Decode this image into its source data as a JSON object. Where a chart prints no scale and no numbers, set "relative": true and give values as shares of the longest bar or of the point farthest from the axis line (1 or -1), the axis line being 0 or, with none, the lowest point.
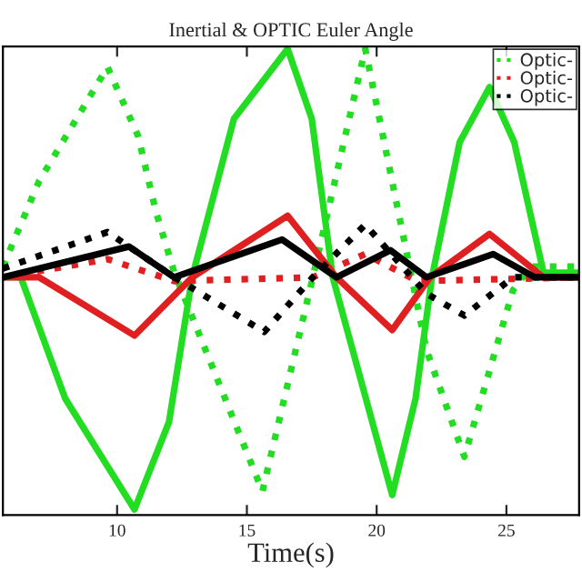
{
  "chart_data": {
    "type": "line",
    "title": "Inertial & OPTIC Euler Angle",
    "xlabel": "Time(s)",
    "relative": true,
    "xlim": [
      5.6,
      27.8
    ],
    "xticks": [
      10,
      15,
      20,
      25
    ],
    "grid": false,
    "legend": "top right",
    "series": [
      {
        "color": "#22dd22",
        "line_style": "solid",
        "x": [
          5.6,
          6.29,
          8.0,
          10.67,
          12.0,
          12.89,
          14.5,
          16.57,
          17.5,
          18.31,
          20.6,
          21.5,
          22.13,
          23.2,
          24.35,
          25.3,
          26.43,
          27.8
        ],
        "values": [
          0.51,
          0.51,
          0.25,
          0.012,
          0.2,
          0.51,
          0.85,
          1.0,
          0.85,
          0.51,
          0.043,
          0.25,
          0.51,
          0.8,
          0.918,
          0.8,
          0.52,
          0.52
        ]
      },
      {
        "name": "Optic-",
        "color": "#22dd22",
        "line_style": "dotted",
        "x": [
          5.6,
          6.99,
          9.63,
          10.81,
          11.5,
          12.2,
          15.6,
          17.54,
          19.56,
          21.92,
          23.38,
          25.25,
          25.95,
          27.8
        ],
        "values": [
          0.533,
          0.716,
          0.961,
          0.813,
          0.65,
          0.521,
          0.051,
          0.51,
          1.0,
          0.354,
          0.125,
          0.482,
          0.533,
          0.533
        ]
      },
      {
        "color": "#e02020",
        "line_style": "solid",
        "x": [
          5.6,
          6.99,
          10.67,
          12.89,
          16.57,
          18.45,
          20.6,
          22.06,
          24.35,
          26.43,
          27.8
        ],
        "values": [
          0.51,
          0.51,
          0.385,
          0.51,
          0.642,
          0.51,
          0.397,
          0.51,
          0.603,
          0.51,
          0.51
        ]
      },
      {
        "name": "Optic-",
        "color": "#e02020",
        "line_style": "dotted",
        "x": [
          5.6,
          9.63,
          12.2,
          17.54,
          19.56,
          21.57,
          27.8
        ],
        "values": [
          0.51,
          0.549,
          0.502,
          0.51,
          0.56,
          0.502,
          0.51
        ]
      },
      {
        "color": "#000000",
        "line_style": "solid",
        "x": [
          5.6,
          10.46,
          12.2,
          16.36,
          18.45,
          20.53,
          21.92,
          24.49,
          26.09,
          27.8
        ],
        "values": [
          0.51,
          0.576,
          0.51,
          0.591,
          0.51,
          0.568,
          0.51,
          0.56,
          0.51,
          0.51
        ]
      },
      {
        "name": "Optic-",
        "color": "#000000",
        "line_style": "dotted",
        "x": [
          5.6,
          9.63,
          12.2,
          15.67,
          17.54,
          19.56,
          21.92,
          23.38,
          25.25,
          27.8
        ],
        "values": [
          0.529,
          0.607,
          0.51,
          0.393,
          0.51,
          0.623,
          0.475,
          0.428,
          0.51,
          0.51
        ]
      }
    ]
  }
}
